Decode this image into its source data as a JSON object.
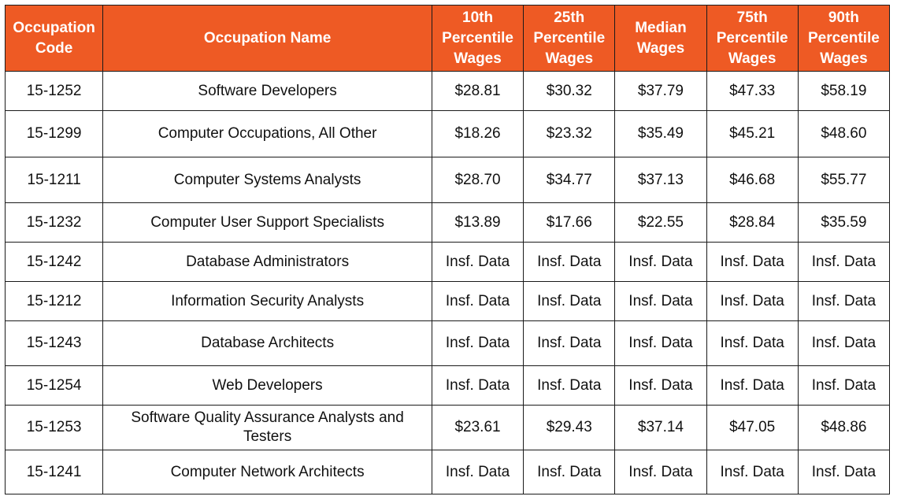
{
  "colors": {
    "header_bg": "#ee5a24",
    "header_text": "#ffffff",
    "border": "#1a1a1a",
    "cell_text": "#111111"
  },
  "table": {
    "headers": [
      {
        "key": "code",
        "label": "Occupation Code"
      },
      {
        "key": "name",
        "label": "Occupation Name"
      },
      {
        "key": "p10",
        "label": "10th Percentile Wages"
      },
      {
        "key": "p25",
        "label": "25th Percentile Wages"
      },
      {
        "key": "median",
        "label": "Median Wages"
      },
      {
        "key": "p75",
        "label": "75th Percentile Wages"
      },
      {
        "key": "p90",
        "label": "90th Percentile Wages"
      }
    ],
    "rows": [
      {
        "code": "15-1252",
        "name": "Software Developers",
        "p10": "$28.81",
        "p25": "$30.32",
        "median": "$37.79",
        "p75": "$47.33",
        "p90": "$58.19"
      },
      {
        "code": "15-1299",
        "name": "Computer Occupations, All Other",
        "p10": "$18.26",
        "p25": "$23.32",
        "median": "$35.49",
        "p75": "$45.21",
        "p90": "$48.60"
      },
      {
        "code": "15-1211",
        "name": "Computer Systems Analysts",
        "p10": "$28.70",
        "p25": "$34.77",
        "median": "$37.13",
        "p75": "$46.68",
        "p90": "$55.77"
      },
      {
        "code": "15-1232",
        "name": "Computer User Support Specialists",
        "p10": "$13.89",
        "p25": "$17.66",
        "median": "$22.55",
        "p75": "$28.84",
        "p90": "$35.59"
      },
      {
        "code": "15-1242",
        "name": "Database Administrators",
        "p10": "Insf. Data",
        "p25": "Insf. Data",
        "median": "Insf. Data",
        "p75": "Insf. Data",
        "p90": "Insf. Data"
      },
      {
        "code": "15-1212",
        "name": "Information Security Analysts",
        "p10": "Insf. Data",
        "p25": "Insf. Data",
        "median": "Insf. Data",
        "p75": "Insf. Data",
        "p90": "Insf. Data"
      },
      {
        "code": "15-1243",
        "name": "Database Architects",
        "p10": "Insf. Data",
        "p25": "Insf. Data",
        "median": "Insf. Data",
        "p75": "Insf. Data",
        "p90": "Insf. Data"
      },
      {
        "code": "15-1254",
        "name": "Web Developers",
        "p10": "Insf. Data",
        "p25": "Insf. Data",
        "median": "Insf. Data",
        "p75": "Insf. Data",
        "p90": "Insf. Data"
      },
      {
        "code": "15-1253",
        "name": "Software Quality Assurance Analysts and Testers",
        "p10": "$23.61",
        "p25": "$29.43",
        "median": "$37.14",
        "p75": "$47.05",
        "p90": "$48.86"
      },
      {
        "code": "15-1241",
        "name": "Computer Network Architects",
        "p10": "Insf. Data",
        "p25": "Insf. Data",
        "median": "Insf. Data",
        "p75": "Insf. Data",
        "p90": "Insf. Data"
      }
    ]
  }
}
